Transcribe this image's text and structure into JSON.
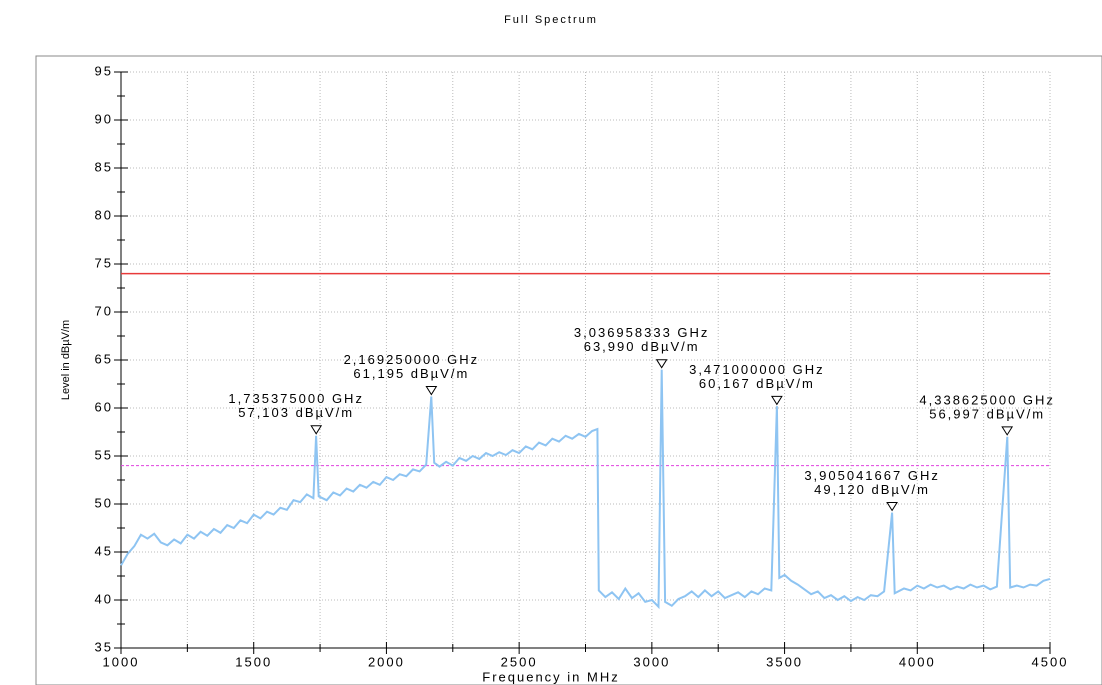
{
  "chart_data": {
    "type": "line",
    "title": "Full Spectrum",
    "x_label": "Frequency in MHz",
    "y_label": "Level in dBµV/m",
    "xlim": [
      1000,
      4500
    ],
    "ylim": [
      35,
      95
    ],
    "xticks": [
      1000,
      1500,
      2000,
      2500,
      3000,
      3500,
      4000,
      4500
    ],
    "xminor": [
      1250,
      1750,
      2250,
      2750,
      3250,
      3750,
      4250
    ],
    "yticks": [
      35,
      40,
      45,
      50,
      55,
      60,
      65,
      70,
      75,
      80,
      85,
      90,
      95
    ],
    "yminor": [
      37.5,
      42.5,
      47.5,
      52.5,
      57.5,
      62.5,
      67.5,
      72.5,
      77.5,
      82.5,
      87.5,
      92.5
    ],
    "grid": true,
    "limits": [
      {
        "value": 74,
        "color": "#e83a3a",
        "style": "solid"
      },
      {
        "value": 54,
        "color": "#e040e0",
        "style": "dashed"
      }
    ],
    "series": [
      {
        "color": "#8ec4f2",
        "x": [
          1000,
          1025,
          1050,
          1075,
          1100,
          1125,
          1150,
          1175,
          1200,
          1225,
          1250,
          1275,
          1300,
          1325,
          1350,
          1375,
          1400,
          1425,
          1450,
          1475,
          1500,
          1525,
          1550,
          1575,
          1600,
          1625,
          1650,
          1675,
          1700,
          1725,
          1735,
          1745,
          1775,
          1800,
          1825,
          1850,
          1875,
          1900,
          1925,
          1950,
          1975,
          2000,
          2025,
          2050,
          2075,
          2100,
          2125,
          2150,
          2169,
          2180,
          2200,
          2225,
          2250,
          2275,
          2300,
          2325,
          2350,
          2375,
          2400,
          2425,
          2450,
          2475,
          2500,
          2525,
          2550,
          2575,
          2600,
          2625,
          2650,
          2675,
          2700,
          2725,
          2750,
          2775,
          2795,
          2800,
          2825,
          2850,
          2875,
          2900,
          2925,
          2950,
          2975,
          3000,
          3025,
          3037,
          3050,
          3075,
          3100,
          3125,
          3150,
          3175,
          3200,
          3225,
          3250,
          3275,
          3300,
          3325,
          3350,
          3375,
          3400,
          3425,
          3450,
          3471,
          3480,
          3500,
          3525,
          3550,
          3575,
          3600,
          3625,
          3650,
          3675,
          3700,
          3725,
          3750,
          3775,
          3800,
          3825,
          3850,
          3875,
          3905,
          3915,
          3950,
          3975,
          4000,
          4025,
          4050,
          4075,
          4100,
          4125,
          4150,
          4175,
          4200,
          4225,
          4250,
          4275,
          4300,
          4339,
          4350,
          4375,
          4400,
          4425,
          4450,
          4475,
          4500
        ],
        "values": [
          43.6,
          44.8,
          45.6,
          46.8,
          46.4,
          46.9,
          46.0,
          45.7,
          46.3,
          45.9,
          46.8,
          46.4,
          47.1,
          46.7,
          47.4,
          47.0,
          47.8,
          47.5,
          48.3,
          48.0,
          48.9,
          48.5,
          49.2,
          48.9,
          49.6,
          49.4,
          50.4,
          50.2,
          51.0,
          50.6,
          57.1,
          50.8,
          50.4,
          51.2,
          50.9,
          51.6,
          51.3,
          52.0,
          51.7,
          52.3,
          52.0,
          52.8,
          52.5,
          53.1,
          52.9,
          53.6,
          53.4,
          54.1,
          61.2,
          54.3,
          53.9,
          54.4,
          54.0,
          54.8,
          54.5,
          55.0,
          54.7,
          55.3,
          55.0,
          55.4,
          55.1,
          55.6,
          55.3,
          56.0,
          55.7,
          56.4,
          56.1,
          56.8,
          56.5,
          57.1,
          56.8,
          57.3,
          57.0,
          57.6,
          57.8,
          41.0,
          40.3,
          40.8,
          40.1,
          41.2,
          40.2,
          40.7,
          39.8,
          40.0,
          39.3,
          64.0,
          39.8,
          39.4,
          40.1,
          40.4,
          40.9,
          40.3,
          41.0,
          40.4,
          40.9,
          40.2,
          40.5,
          40.8,
          40.3,
          40.9,
          40.6,
          41.2,
          41.0,
          60.2,
          42.3,
          42.6,
          42.0,
          41.6,
          41.1,
          40.6,
          40.9,
          40.2,
          40.5,
          40.0,
          40.4,
          39.9,
          40.3,
          40.0,
          40.5,
          40.4,
          40.9,
          49.1,
          40.7,
          41.2,
          41.0,
          41.5,
          41.2,
          41.6,
          41.3,
          41.5,
          41.1,
          41.4,
          41.2,
          41.6,
          41.3,
          41.5,
          41.1,
          41.4,
          57.0,
          41.3,
          41.5,
          41.3,
          41.6,
          41.5,
          42.0,
          42.2
        ]
      }
    ],
    "markers": [
      {
        "x": 1735.375,
        "y": 57.103,
        "x_label": "1,735375000 GHz",
        "y_label": "57,103 dBµV/m"
      },
      {
        "x": 2169.25,
        "y": 61.195,
        "x_label": "2,169250000 GHz",
        "y_label": "61,195 dBµV/m"
      },
      {
        "x": 3036.958333,
        "y": 63.99,
        "x_label": "3,036958333 GHz",
        "y_label": "63,990 dBµV/m"
      },
      {
        "x": 3471,
        "y": 60.167,
        "x_label": "3,471000000 GHz",
        "y_label": "60,167 dBµV/m"
      },
      {
        "x": 3905.041667,
        "y": 49.12,
        "x_label": "3,905041667 GHz",
        "y_label": "49,120 dBµV/m"
      },
      {
        "x": 4338.625,
        "y": 56.997,
        "x_label": "4,338625000 GHz",
        "y_label": "56,997 dBµV/m"
      }
    ]
  }
}
